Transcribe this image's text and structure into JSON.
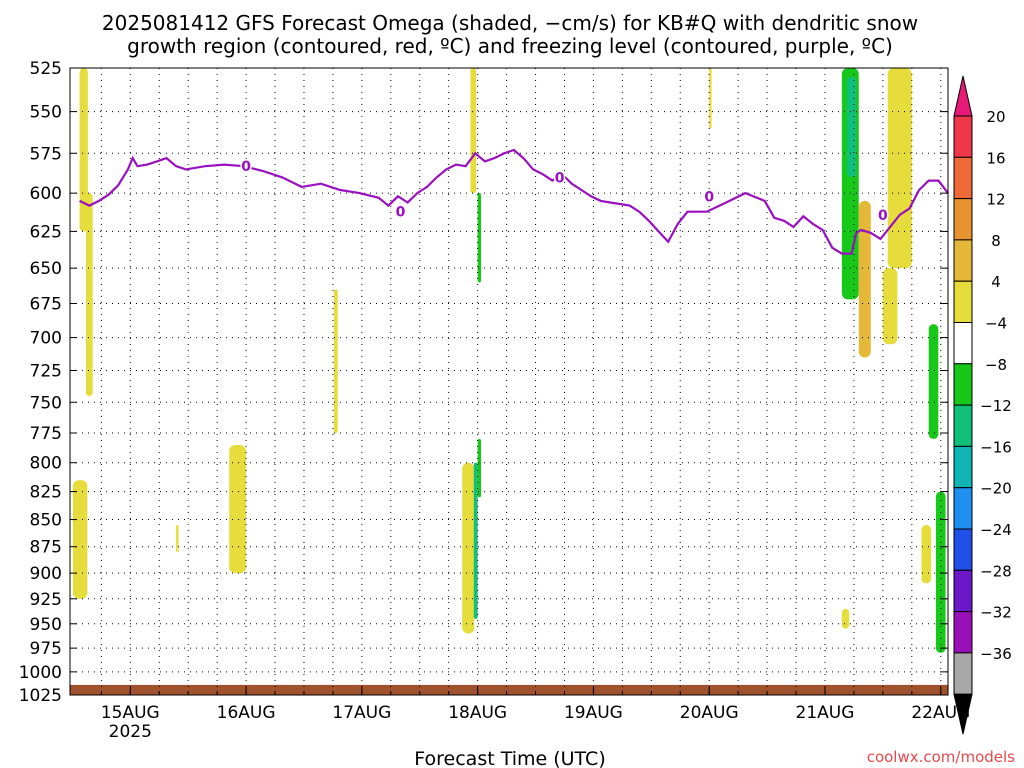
{
  "title": {
    "line1": "2025081412 GFS Forecast Omega (shaded, −cm/s) for KB#Q with dendritic snow",
    "line2": "growth region (contoured, red, ºC) and freezing level (contoured, purple, ºC)"
  },
  "credit": {
    "text": "coolwx.com/models",
    "color": "#e8484b"
  },
  "chart_data": {
    "type": "heatmap",
    "title": "2025081412 GFS Forecast Omega (shaded, −cm/s) for KB#Q with dendritic snow growth region (contoured, red, ºC) and freezing level (contoured, purple, ºC)",
    "xlabel": "Forecast Time (UTC)",
    "ylabel": "",
    "x_range": [
      "2025-08-14T12:00",
      "2025-08-22T00:00"
    ],
    "x_ticks": [
      {
        "t": 10.5,
        "label": "15AUG",
        "sublabel": "2025"
      },
      {
        "t": 34.5,
        "label": "16AUG"
      },
      {
        "t": 58.5,
        "label": "17AUG"
      },
      {
        "t": 82.5,
        "label": "18AUG"
      },
      {
        "t": 106.5,
        "label": "19AUG"
      },
      {
        "t": 130.5,
        "label": "20AUG"
      },
      {
        "t": 154.5,
        "label": "21AUG"
      },
      {
        "t": 178.5,
        "label": "22AUG"
      }
    ],
    "y_range": [
      525,
      1025
    ],
    "y_ticks": [
      "525",
      "550",
      "575",
      "600",
      "625",
      "650",
      "675",
      "700",
      "725",
      "750",
      "775",
      "800",
      "825",
      "850",
      "875",
      "900",
      "925",
      "950",
      "975",
      "1000",
      "1025"
    ],
    "grid": true,
    "colorbar": {
      "labels": [
        "20",
        "16",
        "12",
        "8",
        "4",
        "−4",
        "−8",
        "−12",
        "−16",
        "−20",
        "−24",
        "−28",
        "−32",
        "−36"
      ],
      "colors": [
        "#f0384a",
        "#f06a38",
        "#e8942e",
        "#e6b83a",
        "#e6dc3c",
        "#ffffff",
        "#18c818",
        "#10c07a",
        "#10b4b4",
        "#1e90f0",
        "#2050e8",
        "#6a18c8",
        "#9a10b8",
        "#a8a8a8"
      ],
      "top_color": "#e81a78",
      "bottom_color": "#000000"
    },
    "shaded_regions": [
      {
        "color": "#e6dc3c",
        "t": [
          0.0,
          1.7
        ],
        "p": [
          525,
          625
        ]
      },
      {
        "color": "#e6dc3c",
        "t": [
          1.3,
          2.7
        ],
        "p": [
          600,
          745
        ]
      },
      {
        "color": "#e6dc3c",
        "t": [
          -1.4,
          1.6
        ],
        "p": [
          815,
          925
        ]
      },
      {
        "color": "#e6dc3c",
        "t": [
          31.0,
          34.5
        ],
        "p": [
          785,
          900
        ]
      },
      {
        "color": "#e6dc3c",
        "t": [
          20.0,
          20.5
        ],
        "p": [
          855,
          880
        ]
      },
      {
        "color": "#e6dc3c",
        "t": [
          52.7,
          53.5
        ],
        "p": [
          665,
          775
        ]
      },
      {
        "color": "#e6dc3c",
        "t": [
          79.3,
          81.8
        ],
        "p": [
          800,
          960
        ]
      },
      {
        "color": "#e6dc3c",
        "t": [
          81.0,
          82.2
        ],
        "p": [
          525,
          600
        ]
      },
      {
        "color": "#18c818",
        "t": [
          82.5,
          83.2
        ],
        "p": [
          600,
          660
        ]
      },
      {
        "color": "#10c07a",
        "t": [
          81.7,
          82.5
        ],
        "p": [
          800,
          945
        ]
      },
      {
        "color": "#18c818",
        "t": [
          82.5,
          83.2
        ],
        "p": [
          780,
          830
        ]
      },
      {
        "color": "#e6dc3c",
        "t": [
          130.5,
          131.0
        ],
        "p": [
          525,
          560
        ]
      },
      {
        "color": "#18c818",
        "t": [
          158.0,
          161.5
        ],
        "p": [
          525,
          672
        ]
      },
      {
        "color": "#10c07a",
        "t": [
          159.0,
          161.0
        ],
        "p": [
          530,
          590
        ]
      },
      {
        "color": "#e6b83a",
        "t": [
          161.5,
          164.0
        ],
        "p": [
          605,
          715
        ]
      },
      {
        "color": "#e6dc3c",
        "t": [
          167.5,
          172.5
        ],
        "p": [
          525,
          650
        ]
      },
      {
        "color": "#e6dc3c",
        "t": [
          166.5,
          169.5
        ],
        "p": [
          650,
          705
        ]
      },
      {
        "color": "#18c818",
        "t": [
          176.0,
          178.0
        ],
        "p": [
          690,
          780
        ]
      },
      {
        "color": "#18c818",
        "t": [
          177.5,
          179.5
        ],
        "p": [
          825,
          980
        ]
      },
      {
        "color": "#e6dc3c",
        "t": [
          174.5,
          176.5
        ],
        "p": [
          855,
          910
        ]
      },
      {
        "color": "#e6dc3c",
        "t": [
          158.0,
          159.5
        ],
        "p": [
          935,
          955
        ]
      }
    ],
    "series": [
      {
        "type": "line",
        "color": "#9a10c0",
        "contour_label": "0",
        "x": [
          0,
          2,
          4,
          6,
          8,
          10,
          11,
          12,
          14,
          16,
          18,
          20,
          22,
          26,
          30,
          34,
          38,
          42,
          46,
          50,
          54,
          58,
          62,
          64,
          66,
          68,
          70,
          72,
          74,
          76,
          78,
          80,
          82,
          84,
          86,
          88,
          90,
          92,
          94,
          96,
          98,
          100,
          102,
          104,
          106,
          108,
          110,
          114,
          116,
          118,
          120,
          122,
          124,
          126,
          130,
          134,
          138,
          142,
          144,
          146,
          148,
          150,
          152,
          154,
          156,
          158,
          160,
          161,
          162,
          164,
          166,
          168,
          170,
          172,
          174,
          176,
          178,
          180
        ],
        "y": [
          605,
          608,
          605,
          601,
          595,
          585,
          578,
          583,
          582,
          580,
          578,
          583,
          585,
          583,
          582,
          583,
          586,
          590,
          596,
          594,
          598,
          600,
          603,
          608,
          602,
          606,
          600,
          596,
          590,
          585,
          582,
          583,
          575,
          580,
          578,
          575,
          573,
          578,
          585,
          588,
          592,
          588,
          594,
          598,
          602,
          605,
          606,
          608,
          612,
          618,
          625,
          632,
          620,
          612,
          612,
          606,
          600,
          605,
          616,
          618,
          622,
          615,
          620,
          624,
          636,
          640,
          640,
          626,
          624,
          626,
          630,
          622,
          614,
          610,
          598,
          592,
          592,
          600
        ]
      }
    ],
    "surface_band": {
      "color": "#a0522d",
      "p_top": 1014,
      "p_bottom": 1025
    }
  }
}
